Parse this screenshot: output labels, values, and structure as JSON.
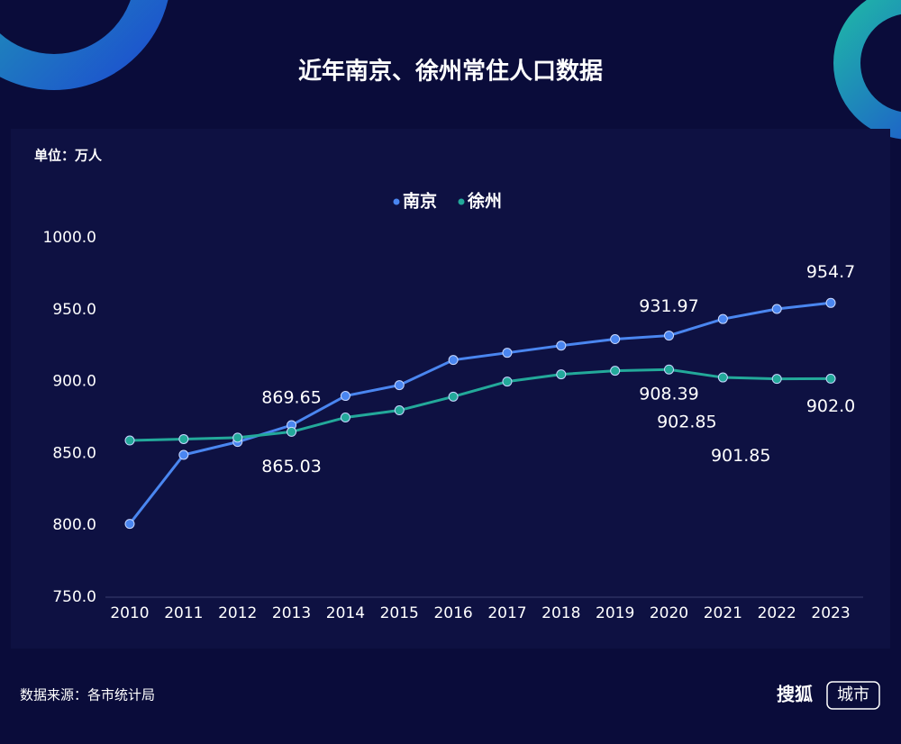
{
  "chart_data": {
    "type": "line",
    "title": "近年南京、徐州常住人口数据",
    "y_unit": "单位：万人",
    "source": "数据来源：各市统计局",
    "brand": "搜狐",
    "brand_tag": "城市",
    "categories": [
      "2010",
      "2011",
      "2012",
      "2013",
      "2014",
      "2015",
      "2016",
      "2017",
      "2018",
      "2019",
      "2020",
      "2021",
      "2022",
      "2023"
    ],
    "series": [
      {
        "name": "南京",
        "color": "#4a86f0",
        "values": [
          801,
          849,
          858,
          869.65,
          890,
          897.5,
          915,
          920,
          925,
          929.5,
          931.97,
          943.5,
          950.5,
          954.7
        ],
        "value_labels": [
          null,
          null,
          null,
          "869.65",
          null,
          null,
          null,
          null,
          null,
          null,
          "931.97",
          null,
          null,
          "954.7"
        ]
      },
      {
        "name": "徐州",
        "color": "#23a99a",
        "values": [
          859,
          860,
          861,
          865.03,
          875,
          880,
          889.5,
          900,
          905,
          907.5,
          908.39,
          902.85,
          901.85,
          902
        ],
        "value_labels": [
          null,
          null,
          null,
          "865.03",
          null,
          null,
          null,
          null,
          null,
          null,
          "908.39",
          "902.85",
          "901.85",
          "902.0"
        ]
      }
    ],
    "ylim": [
      750,
      1000
    ],
    "yticks": [
      {
        "value": 750,
        "label": "750.0"
      },
      {
        "value": 800,
        "label": "800.0"
      },
      {
        "value": 850,
        "label": "850.0"
      },
      {
        "value": 900,
        "label": "900.0"
      },
      {
        "value": 950,
        "label": "950.0"
      },
      {
        "value": 1000,
        "label": "1000.0"
      }
    ],
    "grid": false,
    "legend": "top"
  }
}
